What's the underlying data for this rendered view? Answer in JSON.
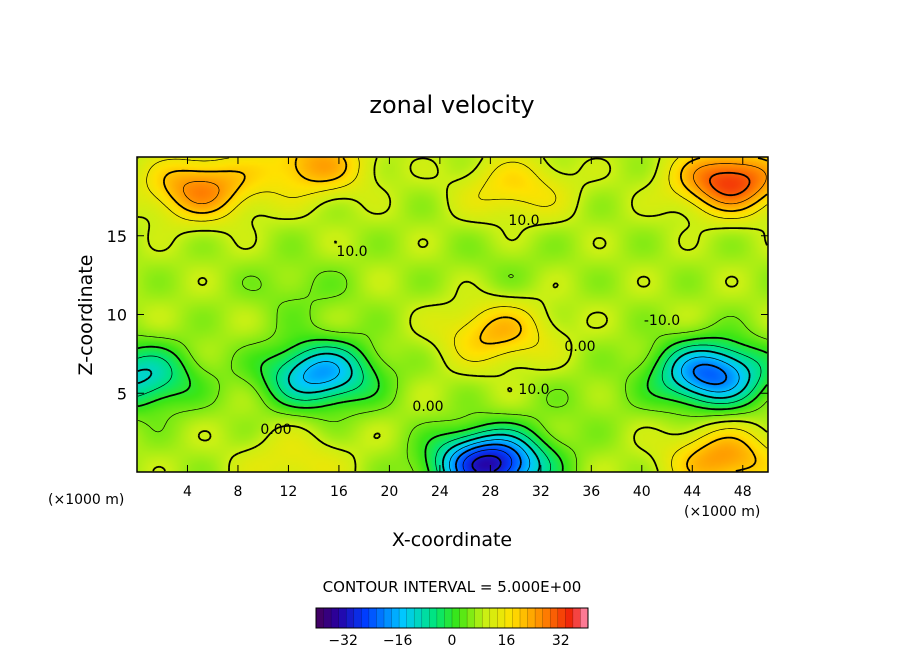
{
  "chart_data": {
    "type": "heatmap",
    "title": "zonal velocity",
    "xlabel": "X-coordinate",
    "ylabel": "Z-coordinate",
    "x_unit_label": "(×1000 m)",
    "z_unit_label": "(×1000 m)",
    "xlim": [
      0,
      50
    ],
    "zlim": [
      0,
      20
    ],
    "x_ticks": [
      "4",
      "8",
      "12",
      "16",
      "20",
      "24",
      "28",
      "32",
      "36",
      "40",
      "44",
      "48"
    ],
    "z_ticks": [
      "5",
      "10",
      "15"
    ],
    "contour_interval_label": "CONTOUR INTERVAL = 5.000E+00",
    "contour_interval": 5.0,
    "contour_labels": [
      "10.0",
      "10.0",
      "-10.0",
      "0.00",
      "10.0",
      "0.00",
      "0.00"
    ],
    "colorbar": {
      "range": [
        -40,
        40
      ],
      "ticks": [
        "−32",
        "−16",
        "0",
        "16",
        "32"
      ]
    },
    "features": [
      {
        "x": 28,
        "z": 0.5,
        "u": -40
      },
      {
        "x": 14.5,
        "z": 6.2,
        "u": -22
      },
      {
        "x": 45.5,
        "z": 6.2,
        "u": -28
      },
      {
        "x": 0.2,
        "z": 6.0,
        "u": -14
      },
      {
        "x": 28.5,
        "z": 8.8,
        "u": 24
      },
      {
        "x": 46.5,
        "z": 0.8,
        "u": 28
      },
      {
        "x": 12.5,
        "z": 0.5,
        "u": 16
      },
      {
        "x": 5,
        "z": 18.0,
        "u": 30
      },
      {
        "x": 47,
        "z": 18.5,
        "u": 38
      },
      {
        "x": 30,
        "z": 18.0,
        "u": 20
      },
      {
        "x": 14,
        "z": 19.5,
        "u": 26
      },
      {
        "x": 29,
        "z": 13.0,
        "u": 6
      },
      {
        "x": 13,
        "z": 11.5,
        "u": 4
      },
      {
        "x": 35,
        "z": 4.5,
        "u": 6
      }
    ]
  }
}
